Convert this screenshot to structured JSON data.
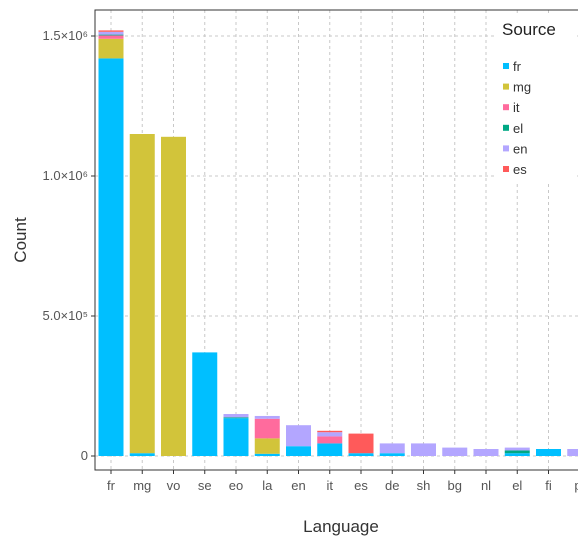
{
  "chart_data": {
    "type": "bar",
    "stacked": true,
    "xlabel": "Language",
    "ylabel": "Count",
    "ylim": [
      0,
      1550000
    ],
    "grid": true,
    "legend_position": "top-right",
    "y_ticks": [
      {
        "value": 0,
        "label": "0"
      },
      {
        "value": 500000,
        "label": "5.0×10⁵"
      },
      {
        "value": 1000000,
        "label": "1.0×10⁶"
      },
      {
        "value": 1500000,
        "label": "1.5×10⁶"
      }
    ],
    "categories": [
      "fr",
      "mg",
      "vo",
      "se",
      "eo",
      "la",
      "en",
      "it",
      "es",
      "de",
      "sh",
      "bg",
      "nl",
      "el",
      "fi",
      "pt"
    ],
    "legend_title": "Source",
    "series": [
      {
        "name": "fr",
        "color": "#00bfff",
        "values": [
          1420000,
          10000,
          0,
          370000,
          135000,
          8000,
          35000,
          45000,
          10000,
          10000,
          0,
          0,
          0,
          10000,
          25000,
          0
        ]
      },
      {
        "name": "mg",
        "color": "#d2c43a",
        "values": [
          70000,
          1140000,
          1140000,
          0,
          0,
          55000,
          0,
          0,
          0,
          0,
          0,
          0,
          0,
          0,
          0,
          0
        ]
      },
      {
        "name": "it",
        "color": "#ff6b9d",
        "values": [
          12000,
          0,
          0,
          0,
          0,
          70000,
          0,
          25000,
          0,
          0,
          0,
          0,
          0,
          0,
          0,
          0
        ]
      },
      {
        "name": "el",
        "color": "#00a884",
        "values": [
          3000,
          0,
          0,
          0,
          3000,
          0,
          0,
          0,
          0,
          0,
          0,
          0,
          0,
          10000,
          0,
          0
        ]
      },
      {
        "name": "en",
        "color": "#b3a6ff",
        "values": [
          10000,
          0,
          0,
          0,
          12000,
          10000,
          75000,
          15000,
          0,
          35000,
          45000,
          30000,
          25000,
          10000,
          0,
          25000
        ]
      },
      {
        "name": "es",
        "color": "#ff5a5a",
        "values": [
          5000,
          0,
          0,
          0,
          0,
          0,
          0,
          5000,
          70000,
          0,
          0,
          0,
          0,
          0,
          0,
          0
        ]
      }
    ]
  }
}
